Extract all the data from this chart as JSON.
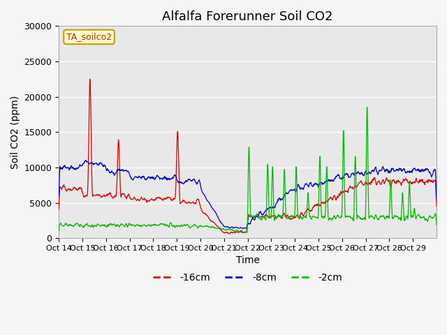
{
  "title": "Alfalfa Forerunner Soil CO2",
  "ylabel": "Soil CO2 (ppm)",
  "xlabel": "Time",
  "annotation": "TA_soilco2",
  "legend_labels": [
    "-16cm",
    "-8cm",
    "-2cm"
  ],
  "legend_colors": [
    "#dd0000",
    "#0000cc",
    "#00bb00"
  ],
  "x_tick_labels": [
    "Oct 14",
    "Oct 15",
    "Oct 16",
    "Oct 17",
    "Oct 18",
    "Oct 19",
    "Oct 20",
    "Oct 21",
    "Oct 22",
    "Oct 23",
    "Oct 24",
    "Oct 25",
    "Oct 26",
    "Oct 27",
    "Oct 28",
    "Oct 29"
  ],
  "ylim": [
    0,
    30000
  ],
  "yticks": [
    0,
    5000,
    10000,
    15000,
    20000,
    25000,
    30000
  ],
  "background_color": "#f5f5f5",
  "plot_bg_color": "#e8e8e8",
  "grid_color": "#ffffff",
  "title_fontsize": 13,
  "axis_label_fontsize": 10,
  "tick_fontsize": 9,
  "line_width": 0.9
}
